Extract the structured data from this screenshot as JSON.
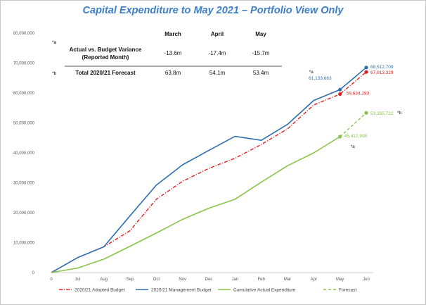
{
  "title": "Capital Expenditure to May 2021 – Portfolio View Only",
  "table": {
    "headers": [
      "March",
      "April",
      "May"
    ],
    "rows": [
      {
        "marker": "*a",
        "label_line1": "Actual vs. Budget Variance",
        "label_line2": "(Reported Month)",
        "values": [
          "-13.6m",
          "-17.4m",
          "-15.7m"
        ]
      },
      {
        "marker": "*b",
        "label_line1": "Total 2020/21 Forecast",
        "label_line2": "",
        "values": [
          "63.8m",
          "54.1m",
          "53.4m"
        ]
      }
    ]
  },
  "chart_data": {
    "type": "line",
    "categories": [
      "0",
      "Jul",
      "Aug",
      "Sep",
      "Oct",
      "Nov",
      "Dec",
      "Jan",
      "Feb",
      "Mar",
      "Apr",
      "May",
      "Jun"
    ],
    "ylim": [
      0,
      80000000
    ],
    "yticks": [
      0,
      10000000,
      20000000,
      30000000,
      40000000,
      50000000,
      60000000,
      70000000,
      80000000
    ],
    "ytick_labels": [
      "0",
      "10,000,000",
      "20,000,000",
      "30,000,000",
      "40,000,000",
      "50,000,000",
      "60,000,000",
      "70,000,000",
      "80,000,000"
    ],
    "grid": false,
    "legend_position": "bottom",
    "series": [
      {
        "name": "2020/21 Adopted Budget",
        "color": "#e02020",
        "style": "dashdot",
        "values": [
          0,
          5000000,
          8600000,
          14000000,
          24500000,
          30500000,
          34800000,
          38200000,
          42800000,
          48000000,
          56000000,
          59634283,
          67013329
        ]
      },
      {
        "name": "2020/21 Management Budget",
        "color": "#2f6fb0",
        "style": "solid",
        "values": [
          0,
          5000000,
          8600000,
          19000000,
          29200000,
          36000000,
          40800000,
          45500000,
          44200000,
          49500000,
          57500000,
          61133663,
          68512709
        ]
      },
      {
        "name": "Cumulative Actual Expenditure",
        "color": "#8bc34a",
        "style": "solid",
        "values": [
          0,
          1500000,
          4500000,
          8800000,
          13200000,
          17800000,
          21500000,
          24500000,
          30200000,
          35700000,
          40000000,
          45412998,
          null
        ]
      },
      {
        "name": "Forecast",
        "color": "#8bc34a",
        "style": "dashed",
        "values": [
          null,
          null,
          null,
          null,
          null,
          null,
          null,
          null,
          null,
          null,
          null,
          45412998,
          53355722
        ]
      }
    ],
    "annotations": [
      {
        "text": "68,512,709",
        "color": "#2f6fb0"
      },
      {
        "text": "67,013,329",
        "color": "#e02020"
      },
      {
        "text": "61,133,663",
        "color": "#2f6fb0"
      },
      {
        "text": "59,634,283",
        "color": "#e02020"
      },
      {
        "text": "53,355,722",
        "color": "#8bc34a"
      },
      {
        "text": "45,412,998",
        "color": "#8bc34a"
      },
      {
        "text": "*a",
        "color": "#222222"
      },
      {
        "text": "*a",
        "color": "#222222"
      },
      {
        "text": "*b",
        "color": "#222222"
      }
    ]
  }
}
